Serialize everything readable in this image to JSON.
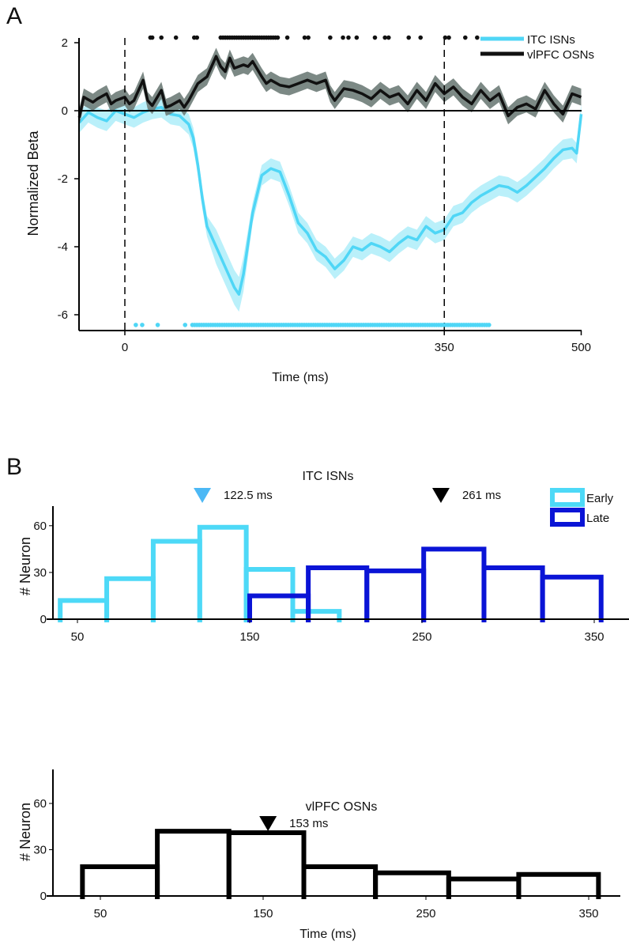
{
  "chart_data": [
    {
      "panel": "A",
      "type": "line",
      "xlabel": "Time (ms)",
      "ylabel": "Normalized Beta",
      "xlim": [
        -50,
        500
      ],
      "ylim": [
        -6.45,
        2.4
      ],
      "xticks": [
        0,
        350,
        500
      ],
      "yticks": [
        2,
        0,
        -2,
        -4,
        -6
      ],
      "vlines_dashed": [
        0,
        350
      ],
      "hline": 0,
      "legend_position": "top-right",
      "colors": {
        "itc": "#4fd6f6",
        "itc_band": "#b3eefa",
        "vlpfc": "#111111",
        "vlpfc_band": "#6e7c78"
      },
      "series": [
        {
          "name": "ITC ISNs",
          "sem": 0.3,
          "x": [
            -50,
            -40,
            -30,
            -20,
            -10,
            0,
            10,
            20,
            30,
            40,
            50,
            60,
            70,
            75,
            80,
            85,
            90,
            100,
            110,
            120,
            125,
            130,
            140,
            150,
            160,
            170,
            180,
            190,
            200,
            210,
            220,
            230,
            240,
            250,
            260,
            270,
            280,
            290,
            300,
            310,
            320,
            330,
            340,
            350,
            360,
            370,
            380,
            390,
            400,
            410,
            420,
            430,
            440,
            450,
            460,
            470,
            480,
            490,
            495,
            500
          ],
          "y": [
            -0.35,
            -0.05,
            -0.2,
            -0.3,
            0.0,
            -0.1,
            -0.2,
            -0.05,
            0.05,
            0.1,
            -0.1,
            -0.15,
            -0.4,
            -0.8,
            -1.6,
            -2.6,
            -3.4,
            -4.0,
            -4.6,
            -5.2,
            -5.4,
            -4.8,
            -3.0,
            -1.9,
            -1.7,
            -1.8,
            -2.5,
            -3.3,
            -3.6,
            -4.1,
            -4.3,
            -4.65,
            -4.4,
            -4.0,
            -4.1,
            -3.9,
            -4.0,
            -4.15,
            -3.9,
            -3.7,
            -3.8,
            -3.4,
            -3.6,
            -3.5,
            -3.1,
            -3.0,
            -2.7,
            -2.5,
            -2.35,
            -2.2,
            -2.25,
            -2.4,
            -2.2,
            -1.95,
            -1.7,
            -1.4,
            -1.15,
            -1.1,
            -1.25,
            -0.1
          ]
        },
        {
          "name": "vlPFC OSNs",
          "sem": 0.25,
          "x": [
            -50,
            -45,
            -35,
            -30,
            -20,
            -15,
            -10,
            0,
            5,
            10,
            20,
            25,
            30,
            40,
            45,
            50,
            60,
            65,
            70,
            80,
            90,
            100,
            105,
            110,
            115,
            120,
            130,
            135,
            140,
            150,
            155,
            160,
            170,
            180,
            190,
            200,
            210,
            220,
            225,
            230,
            240,
            250,
            260,
            270,
            280,
            290,
            300,
            310,
            320,
            330,
            340,
            350,
            360,
            370,
            380,
            390,
            400,
            410,
            420,
            430,
            440,
            450,
            460,
            470,
            480,
            490,
            500
          ],
          "y": [
            -0.2,
            0.4,
            0.25,
            0.35,
            0.5,
            0.2,
            0.3,
            0.4,
            0.2,
            0.3,
            0.9,
            0.3,
            0.15,
            0.6,
            0.1,
            0.15,
            0.3,
            0.1,
            0.3,
            0.8,
            1.0,
            1.6,
            1.3,
            1.15,
            1.55,
            1.25,
            1.35,
            1.3,
            1.45,
            1.0,
            0.8,
            0.9,
            0.75,
            0.7,
            0.8,
            0.9,
            0.8,
            0.9,
            0.5,
            0.3,
            0.65,
            0.6,
            0.5,
            0.35,
            0.6,
            0.4,
            0.5,
            0.2,
            0.6,
            0.3,
            0.8,
            0.5,
            0.7,
            0.4,
            0.2,
            0.6,
            0.3,
            0.5,
            -0.15,
            0.1,
            0.2,
            0.05,
            0.6,
            0.2,
            -0.1,
            0.5,
            0.4
          ]
        }
      ],
      "significance": {
        "vlPFC OSNs": {
          "y": 2.15,
          "points": [
            28,
            30,
            40,
            56,
            76,
            79,
            178,
            197,
            201,
            225,
            239,
            245,
            254,
            274,
            285,
            289,
            311,
            324,
            351,
            355,
            373,
            386
          ],
          "ranges": [
            [
              105,
              168
            ]
          ]
        },
        "ITC ISNs": {
          "y": -6.3,
          "points": [
            12,
            19,
            36,
            66
          ],
          "ranges": [
            [
              74,
              399
            ]
          ]
        }
      }
    },
    {
      "panel": "B-top",
      "type": "bar",
      "title": "ITC ISNs",
      "xlabel": "",
      "ylabel": "# Neuron",
      "xticks": [
        50,
        150,
        250,
        350
      ],
      "yticks": [
        0,
        30,
        60
      ],
      "ylim": [
        0,
        80
      ],
      "legend_position": "top-right",
      "series": [
        {
          "name": "Early",
          "color": "#4dd9f7",
          "edges": [
            40,
            67,
            94,
            121,
            148,
            175,
            202
          ],
          "values": [
            12,
            26,
            50,
            59,
            32,
            5
          ]
        },
        {
          "name": "Late",
          "color": "#0a14d6",
          "edges": [
            150,
            184,
            218,
            251,
            286,
            320,
            354
          ],
          "values": [
            15,
            33,
            31,
            45,
            33,
            27
          ]
        }
      ],
      "annotations": [
        {
          "x": 122.5,
          "text": "122.5 ms",
          "color": "#4cb8f5"
        },
        {
          "x": 261,
          "text": "261 ms",
          "color": "#000000"
        }
      ]
    },
    {
      "panel": "B-bottom",
      "type": "bar",
      "title": "vlPFC OSNs",
      "xlabel": "Time (ms)",
      "ylabel": "# Neuron",
      "xticks": [
        50,
        150,
        250,
        350
      ],
      "yticks": [
        0,
        30,
        60
      ],
      "ylim": [
        0,
        80
      ],
      "series": [
        {
          "name": "vlPFC OSNs",
          "color": "#000000",
          "edges": [
            39,
            85,
            129,
            175,
            219,
            264,
            307,
            356
          ],
          "values": [
            19,
            42,
            41,
            19,
            15,
            11,
            14
          ]
        }
      ],
      "annotations": [
        {
          "x": 153,
          "text": "153 ms",
          "color": "#000000"
        }
      ]
    }
  ],
  "panel_labels": {
    "a": "A",
    "b": "B"
  }
}
